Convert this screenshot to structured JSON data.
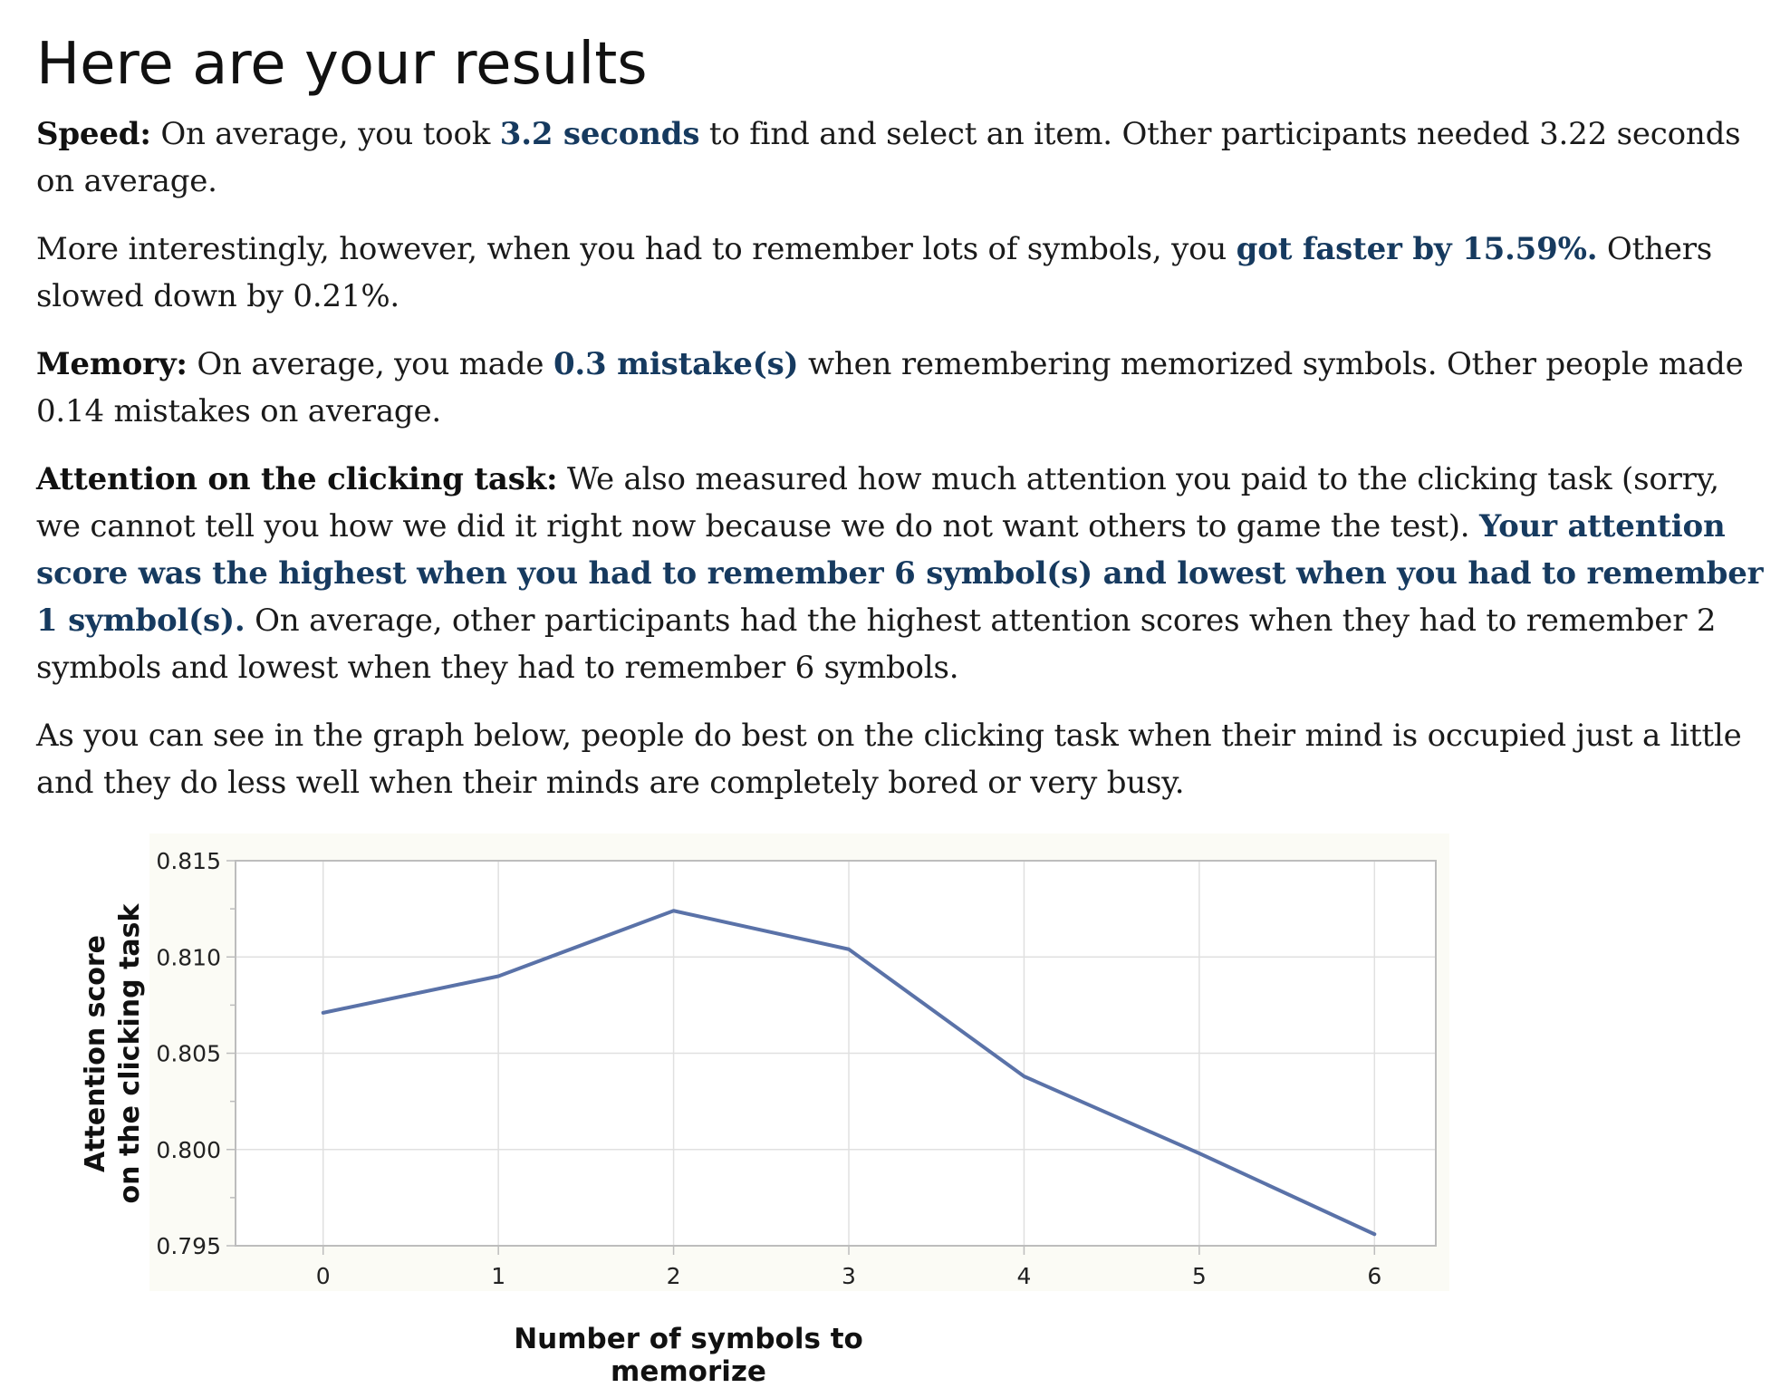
{
  "page": {
    "title": "Here are your results",
    "speed": {
      "label": "Speed:",
      "pre": " On average, you took ",
      "value": "3.2 seconds",
      "post": " to find and select an item. Other participants needed 3.22 seconds on average."
    },
    "speed_change": {
      "pre": "More interestingly, however, when you had to remember lots of symbols, you ",
      "value": "got faster by 15.59%.",
      "post": " Others slowed down by 0.21%."
    },
    "memory": {
      "label": "Memory:",
      "pre": " On average, you made ",
      "value": "0.3 mistake(s)",
      "post": " when remembering memorized symbols. Other people made 0.14 mistakes on average."
    },
    "attention": {
      "label": "Attention on the clicking task:",
      "pre": " We also measured how much attention you paid to the clicking task (sorry, we cannot tell you how we did it right now because we do not want others to game the test). ",
      "value": "Your attention score was the highest when you had to remember 6 symbol(s) and lowest when you had to remember 1 symbol(s).",
      "post": " On average, other participants had the highest attention scores when they had to remember 2 symbols and lowest when they had to remember 6 symbols."
    },
    "graph_intro": "As you can see in the graph below, people do best on the clicking task when their mind is occupied just a little and they do less well when their minds are completely bored or very busy."
  },
  "chart_data": {
    "type": "line",
    "x": [
      0,
      1,
      2,
      3,
      4,
      5,
      6
    ],
    "series": [
      {
        "values": [
          0.8071,
          0.809,
          0.8124,
          0.8104,
          0.8038,
          0.7998,
          0.7956
        ]
      }
    ],
    "xlabel": "Number of symbols to memorize",
    "ylabel": [
      "Attention score",
      "on the clicking task"
    ],
    "x_tick_labels": [
      "0",
      "1",
      "2",
      "3",
      "4",
      "5",
      "6"
    ],
    "y_tick_labels": [
      "0.815",
      "0.810",
      "0.805",
      "0.800",
      "0.795"
    ],
    "y_ticks": [
      0.815,
      0.81,
      0.805,
      0.8,
      0.795
    ],
    "xlim": [
      -0.5,
      6.35
    ],
    "ylim": [
      0.795,
      0.815
    ],
    "grid": true,
    "colors": {
      "line": "#5a72a8",
      "plot_bg": "#fbfbf5",
      "grid": "#e0e0e0",
      "axis": "#bdbdbd"
    }
  }
}
